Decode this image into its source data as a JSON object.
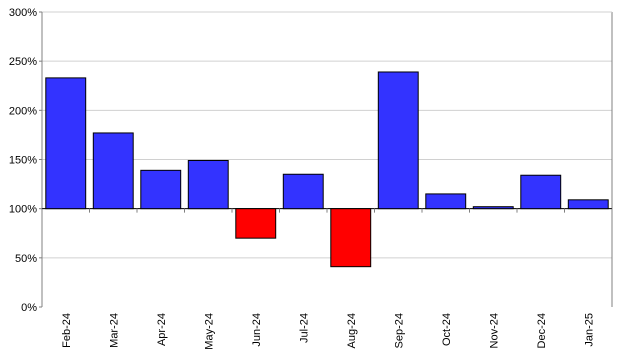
{
  "chart_data": {
    "type": "bar",
    "baseline": 100,
    "categories": [
      "Feb-24",
      "Mar-24",
      "Apr-24",
      "May-24",
      "Jun-24",
      "Jul-24",
      "Aug-24",
      "Sep-24",
      "Oct-24",
      "Nov-24",
      "Dec-24",
      "Jan-25"
    ],
    "values": [
      233,
      177,
      139,
      149,
      70,
      135,
      41,
      239,
      115,
      102,
      134,
      109
    ],
    "ylim": [
      0,
      300
    ],
    "yticks": [
      0,
      50,
      100,
      150,
      200,
      250,
      300
    ],
    "ytick_labels": [
      "0%",
      "50%",
      "100%",
      "150%",
      "200%",
      "250%",
      "300%"
    ],
    "grid": true,
    "colors": {
      "above_baseline": "#3333ff",
      "below_baseline": "#ff0000",
      "grid": "#d0d0d0",
      "axis": "#808080"
    }
  }
}
